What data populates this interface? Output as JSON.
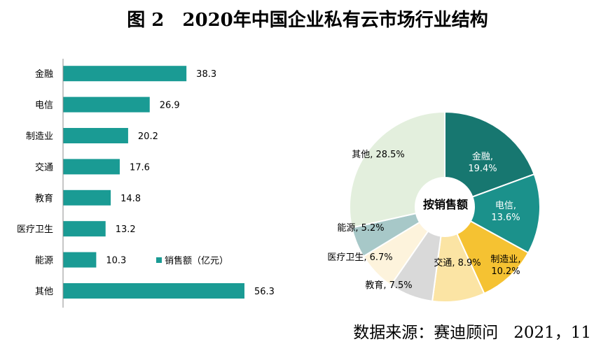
{
  "title": {
    "figure_label": "图 2",
    "text": "2020年中国企业私有云市场行业结构"
  },
  "source": {
    "label": "数据来源：赛迪顾问",
    "date": "2021，11"
  },
  "colors": {
    "bar": "#1a9b94",
    "axis": "#8c8c8c"
  },
  "chart_data": [
    {
      "type": "bar",
      "orientation": "horizontal",
      "categories": [
        "金融",
        "电信",
        "制造业",
        "交通",
        "教育",
        "医疗卫生",
        "能源",
        "其他"
      ],
      "series": [
        {
          "name": "销售额（亿元）",
          "values": [
            38.3,
            26.9,
            20.2,
            17.6,
            14.8,
            13.2,
            10.3,
            56.3
          ]
        }
      ],
      "value_labels": [
        "38.3",
        "26.9",
        "20.2",
        "17.6",
        "14.8",
        "13.2",
        "10.3",
        "56.3"
      ],
      "xlim": [
        0,
        60
      ],
      "legend": {
        "text": "销售额（亿元）",
        "placement": "bottom-right"
      },
      "grid": false
    },
    {
      "type": "pie",
      "donut": true,
      "center_label": "按销售额",
      "start": "12 o'clock, clockwise",
      "slices": [
        {
          "category": "金融",
          "value": 19.4,
          "label_name": "金融,",
          "label_pct": "19.4%",
          "color": "#177770",
          "text_color": "#ffffff"
        },
        {
          "category": "电信",
          "value": 13.6,
          "label_name": "电信,",
          "label_pct": "13.6%",
          "color": "#1b918b",
          "text_color": "#ffffff"
        },
        {
          "category": "制造业",
          "value": 10.2,
          "label_name": "制造业,",
          "label_pct": "10.2%",
          "color": "#f5c232",
          "text_color": "#000000"
        },
        {
          "category": "交通",
          "value": 8.9,
          "label_name": "交通, 8.9%",
          "label_pct": "",
          "color": "#fbe4a4",
          "text_color": "#000000"
        },
        {
          "category": "教育",
          "value": 7.5,
          "label_name": "教育, 7.5%",
          "label_pct": "",
          "color": "#d9d9d9",
          "text_color": "#000000"
        },
        {
          "category": "医疗卫生",
          "value": 6.7,
          "label_name": "医疗卫生, 6.7%",
          "label_pct": "",
          "color": "#fdf3dc",
          "text_color": "#000000"
        },
        {
          "category": "能源",
          "value": 5.2,
          "label_name": "能源, 5.2%",
          "label_pct": "",
          "color": "#a7c8c8",
          "text_color": "#000000"
        },
        {
          "category": "其他",
          "value": 28.5,
          "label_name": "其他, 28.5%",
          "label_pct": "",
          "color": "#e3efdd",
          "text_color": "#000000"
        }
      ]
    }
  ]
}
